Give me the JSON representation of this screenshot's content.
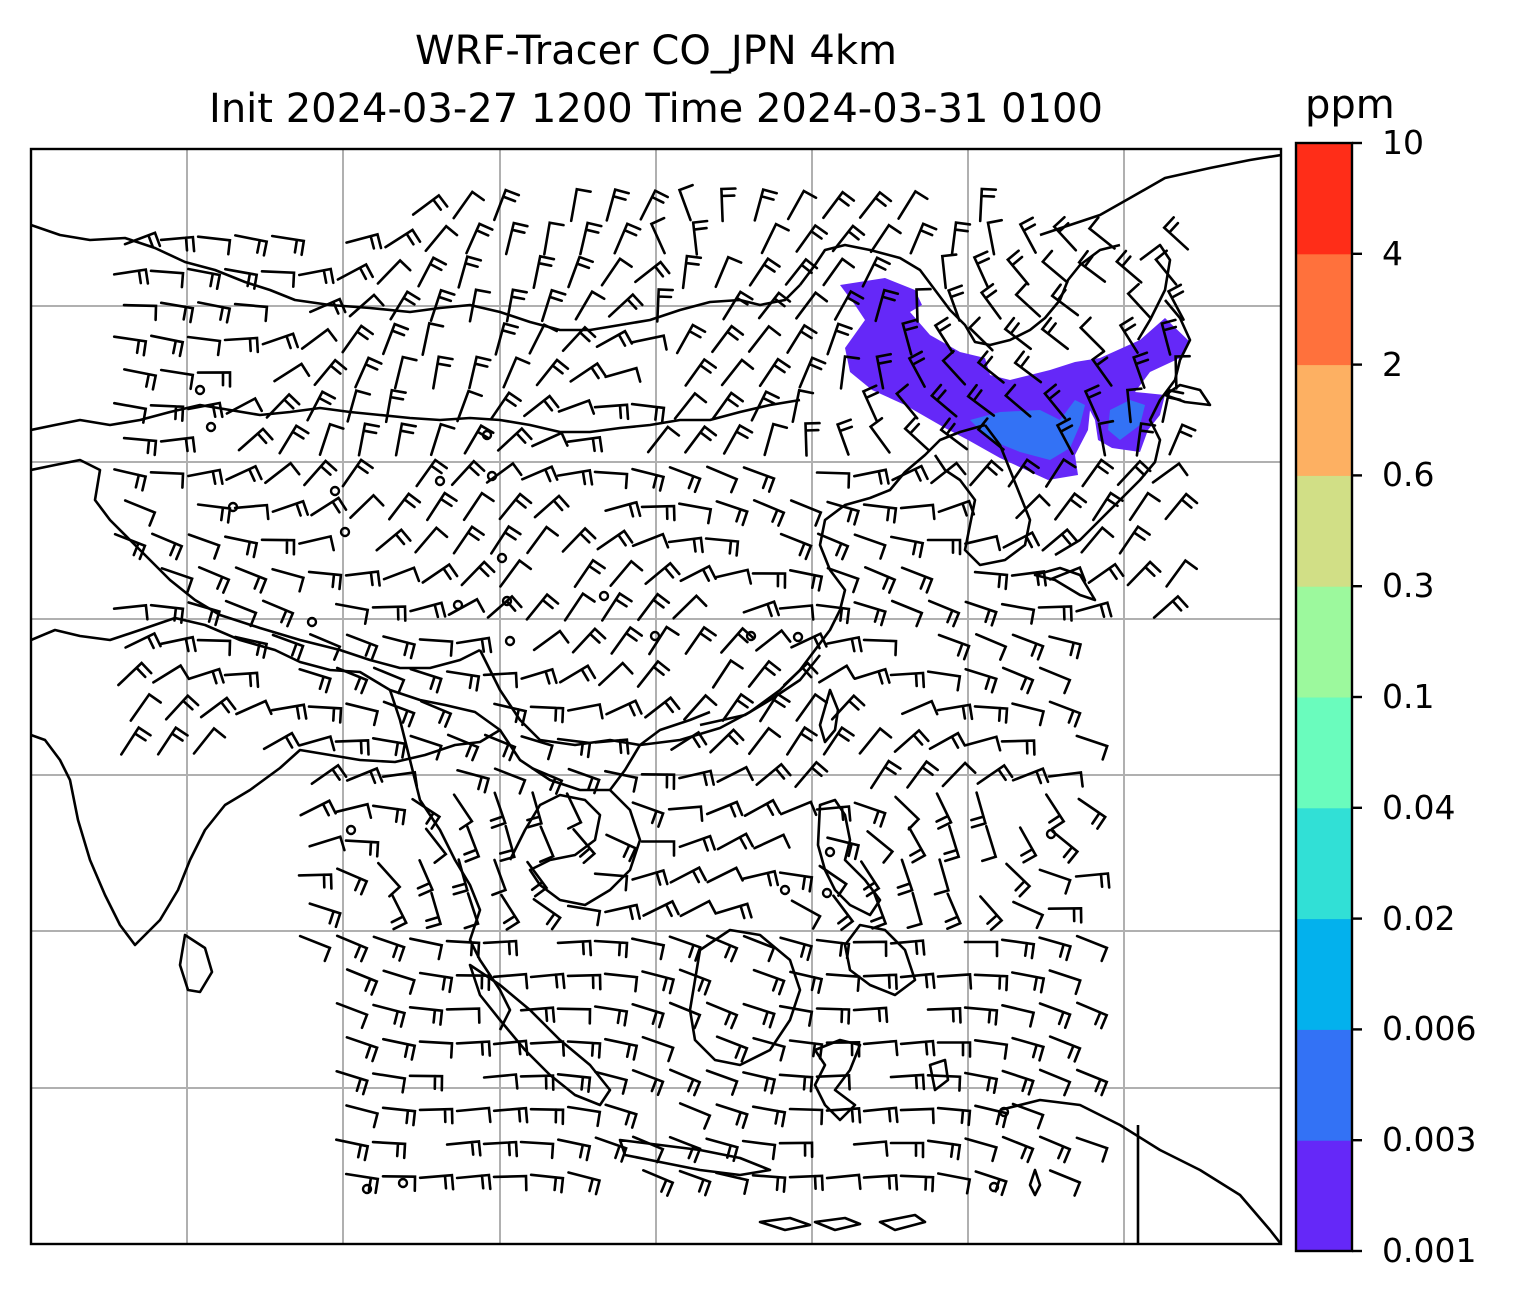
{
  "title_line1": "WRF-Tracer CO_JPN 4km",
  "title_line2": "Init 2024-03-27 1200 Time 2024-03-31 0100",
  "colorbar": {
    "unit": "ppm",
    "levels": [
      "0.001",
      "0.003",
      "0.006",
      "0.02",
      "0.04",
      "0.1",
      "0.3",
      "0.6",
      "2",
      "4",
      "10"
    ],
    "colors": [
      "#6528f8",
      "#3372f5",
      "#03b1ed",
      "#31e0d6",
      "#6afcbd",
      "#9cf99d",
      "#d1df86",
      "#fdb062",
      "#ff713c",
      "#ff2d18"
    ]
  },
  "map": {
    "gridlines": true,
    "grid_color": "#b0b0b0",
    "coastline_color": "#000000",
    "plume_colors": {
      "outer": "#6528f8",
      "inner": "#3372f5"
    },
    "wind_barbs": true
  }
}
